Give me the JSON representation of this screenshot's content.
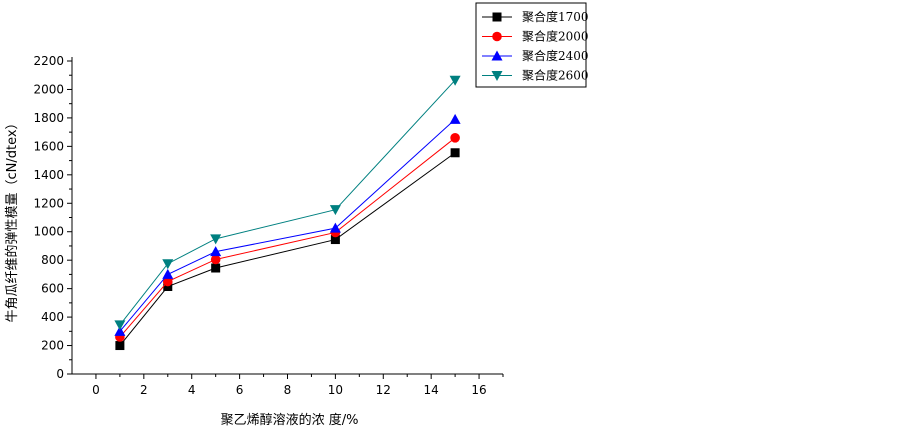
{
  "chart_data": {
    "type": "line",
    "xlabel": "聚乙烯醇溶液的浓 度/%",
    "ylabel": "牛角瓜纤维的弹性模量（cN/dtex）",
    "xlim": [
      -1,
      17
    ],
    "ylim": [
      0,
      2200
    ],
    "xticks": [
      0,
      2,
      4,
      6,
      8,
      10,
      12,
      14,
      16
    ],
    "yticks": [
      0,
      200,
      400,
      600,
      800,
      1000,
      1200,
      1400,
      1600,
      1800,
      2000,
      2200
    ],
    "grid": false,
    "legend_position": "top-right",
    "x": [
      1,
      3,
      5,
      10,
      15
    ],
    "series": [
      {
        "name": "聚合度1700",
        "values": [
          200,
          615,
          745,
          945,
          1555
        ],
        "color": "#000000",
        "marker": "square"
      },
      {
        "name": "聚合度2000",
        "values": [
          260,
          650,
          805,
          995,
          1660
        ],
        "color": "#ff0000",
        "marker": "circle"
      },
      {
        "name": "聚合度2400",
        "values": [
          300,
          700,
          860,
          1025,
          1790
        ],
        "color": "#0000ff",
        "marker": "triangle-up"
      },
      {
        "name": "聚合度2600",
        "values": [
          345,
          775,
          950,
          1155,
          2065
        ],
        "color": "#008080",
        "marker": "triangle-down"
      }
    ]
  }
}
